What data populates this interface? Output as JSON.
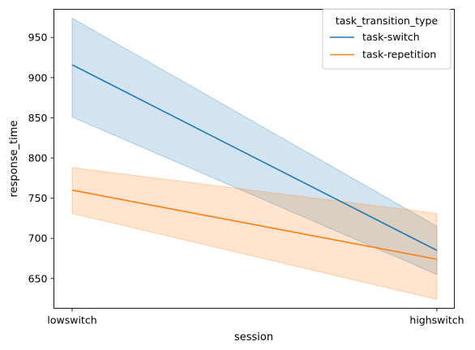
{
  "chart_data": {
    "type": "line",
    "title": "",
    "xlabel": "session",
    "ylabel": "response_time",
    "categories": [
      "lowswitch",
      "highswitch"
    ],
    "y_ticks": [
      650,
      700,
      750,
      800,
      850,
      900,
      950
    ],
    "ylim": [
      613,
      985
    ],
    "grid": false,
    "legend": {
      "title": "task_transition_type",
      "placement": "top-right"
    },
    "series": [
      {
        "name": "task-switch",
        "color": "#1f77b4",
        "values": [
          916,
          685
        ],
        "ci_lower": [
          851,
          655
        ],
        "ci_upper": [
          974,
          715
        ]
      },
      {
        "name": "task-repetition",
        "color": "#ff7f0e",
        "values": [
          760,
          674
        ],
        "ci_lower": [
          731,
          624
        ],
        "ci_upper": [
          788,
          731
        ]
      }
    ]
  }
}
